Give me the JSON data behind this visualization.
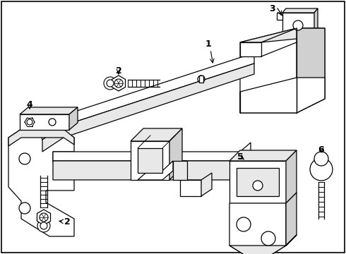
{
  "bg_color": "#ffffff",
  "line_color": "#000000",
  "light_fill": "#e8e8e8",
  "mid_fill": "#d0d0d0",
  "lw": 0.9
}
